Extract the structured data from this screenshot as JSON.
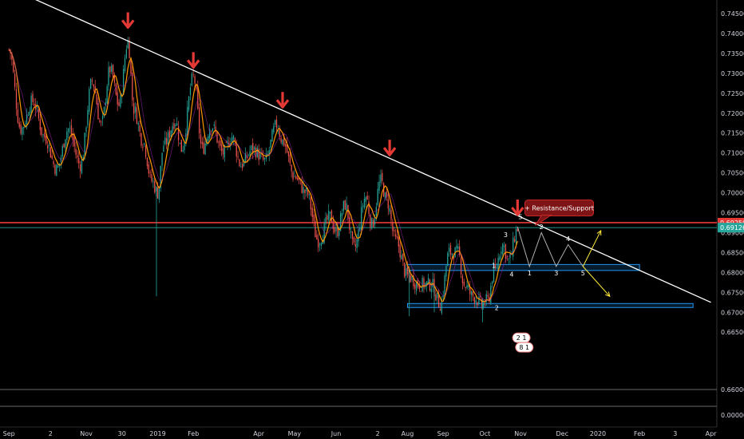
{
  "chart_data": {
    "type": "candlestick",
    "ylim": [
      -0.002,
      0.7475
    ],
    "y_ticks": [
      "0.74500",
      "0.74000",
      "0.73500",
      "0.73000",
      "0.72500",
      "0.72000",
      "0.71500",
      "0.71000",
      "0.70500",
      "0.70000",
      "0.69500",
      "0.69000",
      "0.68500",
      "0.68000",
      "0.67500",
      "0.67000",
      "0.66500",
      "0.66000",
      "0.00000"
    ],
    "y_tick_values": [
      0.745,
      0.74,
      0.735,
      0.73,
      0.725,
      0.72,
      0.715,
      0.71,
      0.705,
      0.7,
      0.695,
      0.69,
      0.685,
      0.68,
      0.675,
      0.67,
      0.665,
      0.66,
      0.0
    ],
    "x_ticks": [
      "Sep",
      "2",
      "Nov",
      "30",
      "2019",
      "Feb",
      "Apr",
      "May",
      "Jun",
      "2",
      "Aug",
      "Sep",
      "Oct",
      "Nov",
      "Dec",
      "2020",
      "Feb",
      "3",
      "Apr"
    ],
    "x_tick_positions": [
      0,
      7,
      13,
      19,
      25,
      31,
      42,
      48,
      55,
      62,
      67,
      73,
      80,
      86,
      93,
      99,
      106,
      112,
      118
    ],
    "x_range": [
      -1.5,
      119
    ],
    "key_points": [
      {
        "t": 0,
        "v": 0.736
      },
      {
        "t": 2,
        "v": 0.716
      },
      {
        "t": 4,
        "v": 0.723
      },
      {
        "t": 6,
        "v": 0.714
      },
      {
        "t": 8,
        "v": 0.706
      },
      {
        "t": 10,
        "v": 0.716
      },
      {
        "t": 12,
        "v": 0.707
      },
      {
        "t": 14,
        "v": 0.728
      },
      {
        "t": 15.5,
        "v": 0.717
      },
      {
        "t": 17,
        "v": 0.731
      },
      {
        "t": 18.5,
        "v": 0.722
      },
      {
        "t": 20,
        "v": 0.738
      },
      {
        "t": 21,
        "v": 0.721
      },
      {
        "t": 22.5,
        "v": 0.713
      },
      {
        "t": 24,
        "v": 0.703
      },
      {
        "t": 25,
        "v": 0.7
      },
      {
        "t": 26,
        "v": 0.712
      },
      {
        "t": 28,
        "v": 0.718
      },
      {
        "t": 29,
        "v": 0.711
      },
      {
        "t": 31,
        "v": 0.729
      },
      {
        "t": 32.5,
        "v": 0.711
      },
      {
        "t": 34,
        "v": 0.717
      },
      {
        "t": 36,
        "v": 0.71
      },
      {
        "t": 37.5,
        "v": 0.714
      },
      {
        "t": 39,
        "v": 0.707
      },
      {
        "t": 41,
        "v": 0.711
      },
      {
        "t": 43,
        "v": 0.708
      },
      {
        "t": 45,
        "v": 0.717
      },
      {
        "t": 46,
        "v": 0.713
      },
      {
        "t": 48,
        "v": 0.704
      },
      {
        "t": 50,
        "v": 0.7
      },
      {
        "t": 52,
        "v": 0.688
      },
      {
        "t": 54,
        "v": 0.694
      },
      {
        "t": 55,
        "v": 0.69
      },
      {
        "t": 56.5,
        "v": 0.697
      },
      {
        "t": 58,
        "v": 0.686
      },
      {
        "t": 60,
        "v": 0.699
      },
      {
        "t": 61,
        "v": 0.692
      },
      {
        "t": 62.5,
        "v": 0.703
      },
      {
        "t": 63.5,
        "v": 0.698
      },
      {
        "t": 65,
        "v": 0.688
      },
      {
        "t": 67,
        "v": 0.679
      },
      {
        "t": 69,
        "v": 0.677
      },
      {
        "t": 71,
        "v": 0.677
      },
      {
        "t": 72.5,
        "v": 0.672
      },
      {
        "t": 74,
        "v": 0.685
      },
      {
        "t": 75.5,
        "v": 0.685
      },
      {
        "t": 76.5,
        "v": 0.677
      },
      {
        "t": 78,
        "v": 0.674
      },
      {
        "t": 79.5,
        "v": 0.672
      },
      {
        "t": 80.5,
        "v": 0.673
      },
      {
        "t": 81.5,
        "v": 0.68
      },
      {
        "t": 83,
        "v": 0.687
      },
      {
        "t": 84,
        "v": 0.683
      },
      {
        "t": 85.5,
        "v": 0.691
      }
    ],
    "trendline": {
      "from": {
        "t": 3,
        "v": 0.7495
      },
      "to": {
        "t": 118,
        "v": 0.6725
      }
    },
    "arrow_points": [
      {
        "t": 20,
        "v": 0.7405
      },
      {
        "t": 31,
        "v": 0.7305
      },
      {
        "t": 46,
        "v": 0.7205
      },
      {
        "t": 64,
        "v": 0.7085
      },
      {
        "t": 85.5,
        "v": 0.6935
      }
    ],
    "levels": [
      {
        "name": "resistance",
        "value": 0.6925,
        "color": "#e53935",
        "label": "0.69250"
      },
      {
        "name": "last-price",
        "value": 0.69126,
        "color": "#26a69a",
        "label": "0.69126"
      }
    ],
    "zones": [
      {
        "t0": 67,
        "t1": 106,
        "v0": 0.6805,
        "v1": 0.682
      },
      {
        "t0": 67,
        "t1": 115,
        "v0": 0.6712,
        "v1": 0.6722
      }
    ],
    "wave_projection": [
      {
        "t": 85.5,
        "v": 0.6915
      },
      {
        "t": 87.5,
        "v": 0.6815
      },
      {
        "t": 89.5,
        "v": 0.69
      },
      {
        "t": 92,
        "v": 0.6815
      },
      {
        "t": 94,
        "v": 0.687
      },
      {
        "t": 96.5,
        "v": 0.6815
      }
    ],
    "projection_up": {
      "from": {
        "t": 96.5,
        "v": 0.6815
      },
      "to": {
        "t": 99.5,
        "v": 0.6905
      }
    },
    "projection_down": {
      "from": {
        "t": 96.5,
        "v": 0.6815
      },
      "to": {
        "t": 101,
        "v": 0.674
      }
    },
    "wave_labels": [
      {
        "text": "5",
        "t": 86,
        "v": 0.694
      },
      {
        "text": "2",
        "t": 89.5,
        "v": 0.6915
      },
      {
        "text": "4",
        "t": 94,
        "v": 0.6885
      },
      {
        "text": "1",
        "t": 87.5,
        "v": 0.6799
      },
      {
        "text": "3",
        "t": 92,
        "v": 0.6799
      },
      {
        "text": "5",
        "t": 96.5,
        "v": 0.6799
      },
      {
        "text": "3",
        "t": 83.5,
        "v": 0.6895
      },
      {
        "text": "1",
        "t": 81.5,
        "v": 0.6818
      },
      {
        "text": "4",
        "t": 84.5,
        "v": 0.6796
      },
      {
        "text": "2",
        "t": 82,
        "v": 0.6712
      }
    ],
    "callout": {
      "text": "+ Resistance/Support",
      "t": 92.5,
      "v": 0.6962
    },
    "colors": {
      "up": "#26a69a",
      "down": "#ef5350",
      "ma": "#ff9800",
      "ma2": "#9c27b0",
      "trendline": "#ffffff",
      "arrow": "#e53935",
      "zone": "#2196f3",
      "projection": "#ffeb3b",
      "background": "#000000",
      "axis_text": "#d1d4dc"
    },
    "badges": [
      {
        "text": "2 1",
        "t": 86,
        "v": 0.6636
      },
      {
        "text": "8 1",
        "t": 86.5,
        "v": 0.6612
      }
    ]
  }
}
